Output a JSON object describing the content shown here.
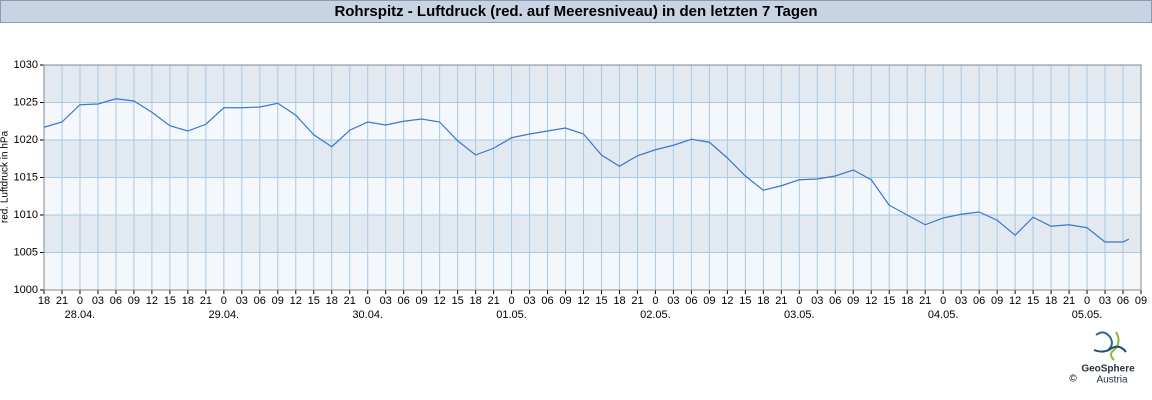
{
  "chart_data": {
    "type": "line",
    "title": "Rohrspitz - Luftdruck (red. auf Meeresniveau) in den letzten 7 Tagen",
    "y_label": "red. Luftdruck in hPa",
    "ylim": [
      1000,
      1030
    ],
    "yticks": [
      1000,
      1005,
      1010,
      1015,
      1020,
      1025,
      1030
    ],
    "xlim": [
      0,
      183
    ],
    "xticks": [
      {
        "value": 0,
        "label": "18"
      },
      {
        "value": 3,
        "label": "21"
      },
      {
        "value": 6,
        "label": "0"
      },
      {
        "value": 9,
        "label": "03"
      },
      {
        "value": 12,
        "label": "06"
      },
      {
        "value": 15,
        "label": "09"
      },
      {
        "value": 18,
        "label": "12"
      },
      {
        "value": 21,
        "label": "15"
      },
      {
        "value": 24,
        "label": "18"
      },
      {
        "value": 27,
        "label": "21"
      },
      {
        "value": 30,
        "label": "0"
      },
      {
        "value": 33,
        "label": "03"
      },
      {
        "value": 36,
        "label": "06"
      },
      {
        "value": 39,
        "label": "09"
      },
      {
        "value": 42,
        "label": "12"
      },
      {
        "value": 45,
        "label": "15"
      },
      {
        "value": 48,
        "label": "18"
      },
      {
        "value": 51,
        "label": "21"
      },
      {
        "value": 54,
        "label": "0"
      },
      {
        "value": 57,
        "label": "03"
      },
      {
        "value": 60,
        "label": "06"
      },
      {
        "value": 63,
        "label": "09"
      },
      {
        "value": 66,
        "label": "12"
      },
      {
        "value": 69,
        "label": "15"
      },
      {
        "value": 72,
        "label": "18"
      },
      {
        "value": 75,
        "label": "21"
      },
      {
        "value": 78,
        "label": "0"
      },
      {
        "value": 81,
        "label": "03"
      },
      {
        "value": 84,
        "label": "06"
      },
      {
        "value": 87,
        "label": "09"
      },
      {
        "value": 90,
        "label": "12"
      },
      {
        "value": 93,
        "label": "15"
      },
      {
        "value": 96,
        "label": "18"
      },
      {
        "value": 99,
        "label": "21"
      },
      {
        "value": 102,
        "label": "0"
      },
      {
        "value": 105,
        "label": "03"
      },
      {
        "value": 108,
        "label": "06"
      },
      {
        "value": 111,
        "label": "09"
      },
      {
        "value": 114,
        "label": "12"
      },
      {
        "value": 117,
        "label": "15"
      },
      {
        "value": 120,
        "label": "18"
      },
      {
        "value": 123,
        "label": "21"
      },
      {
        "value": 126,
        "label": "0"
      },
      {
        "value": 129,
        "label": "03"
      },
      {
        "value": 132,
        "label": "06"
      },
      {
        "value": 135,
        "label": "09"
      },
      {
        "value": 138,
        "label": "12"
      },
      {
        "value": 141,
        "label": "15"
      },
      {
        "value": 144,
        "label": "18"
      },
      {
        "value": 147,
        "label": "21"
      },
      {
        "value": 150,
        "label": "0"
      },
      {
        "value": 153,
        "label": "03"
      },
      {
        "value": 156,
        "label": "06"
      },
      {
        "value": 159,
        "label": "09"
      },
      {
        "value": 162,
        "label": "12"
      },
      {
        "value": 165,
        "label": "15"
      },
      {
        "value": 168,
        "label": "18"
      },
      {
        "value": 171,
        "label": "21"
      },
      {
        "value": 174,
        "label": "0"
      },
      {
        "value": 177,
        "label": "03"
      },
      {
        "value": 180,
        "label": "06"
      },
      {
        "value": 183,
        "label": "09"
      }
    ],
    "xdates": [
      {
        "value": 6,
        "label": "28.04."
      },
      {
        "value": 30,
        "label": "29.04."
      },
      {
        "value": 54,
        "label": "30.04."
      },
      {
        "value": 78,
        "label": "01.05."
      },
      {
        "value": 102,
        "label": "02.05."
      },
      {
        "value": 126,
        "label": "03.05."
      },
      {
        "value": 150,
        "label": "04.05."
      },
      {
        "value": 174,
        "label": "05.05."
      }
    ],
    "grid": true,
    "series": [
      {
        "color": "#3a78d0",
        "x": [
          0,
          3,
          6,
          9,
          12,
          15,
          18,
          21,
          24,
          27,
          30,
          33,
          36,
          39,
          42,
          45,
          48,
          51,
          54,
          57,
          60,
          63,
          66,
          69,
          72,
          75,
          78,
          81,
          84,
          87,
          90,
          93,
          96,
          99,
          102,
          105,
          108,
          111,
          114,
          117,
          120,
          123,
          126,
          129,
          132,
          135,
          138,
          141,
          144,
          147,
          150,
          153,
          156,
          159,
          162,
          165,
          168,
          171,
          174,
          177,
          180,
          181
        ],
        "values": [
          1021.7,
          1022.4,
          1024.7,
          1024.8,
          1025.5,
          1025.2,
          1023.7,
          1021.9,
          1021.2,
          1022.1,
          1024.3,
          1024.3,
          1024.4,
          1024.9,
          1023.3,
          1020.7,
          1019.1,
          1021.3,
          1022.4,
          1022.0,
          1022.5,
          1022.8,
          1022.4,
          1019.9,
          1018.0,
          1018.9,
          1020.3,
          1020.8,
          1021.2,
          1021.6,
          1020.8,
          1018.0,
          1016.5,
          1017.9,
          1018.7,
          1019.3,
          1020.1,
          1019.7,
          1017.6,
          1015.2,
          1013.3,
          1013.9,
          1014.7,
          1014.8,
          1015.2,
          1016.0,
          1014.7,
          1011.3,
          1010.0,
          1008.7,
          1009.6,
          1010.1,
          1010.4,
          1009.3,
          1007.3,
          1009.7,
          1008.5,
          1008.7,
          1008.3,
          1006.4,
          1006.4,
          1006.8
        ]
      }
    ]
  },
  "footer": {
    "logo_name": "GeoSphere",
    "logo_sub": "Austria",
    "copyright": "©"
  }
}
